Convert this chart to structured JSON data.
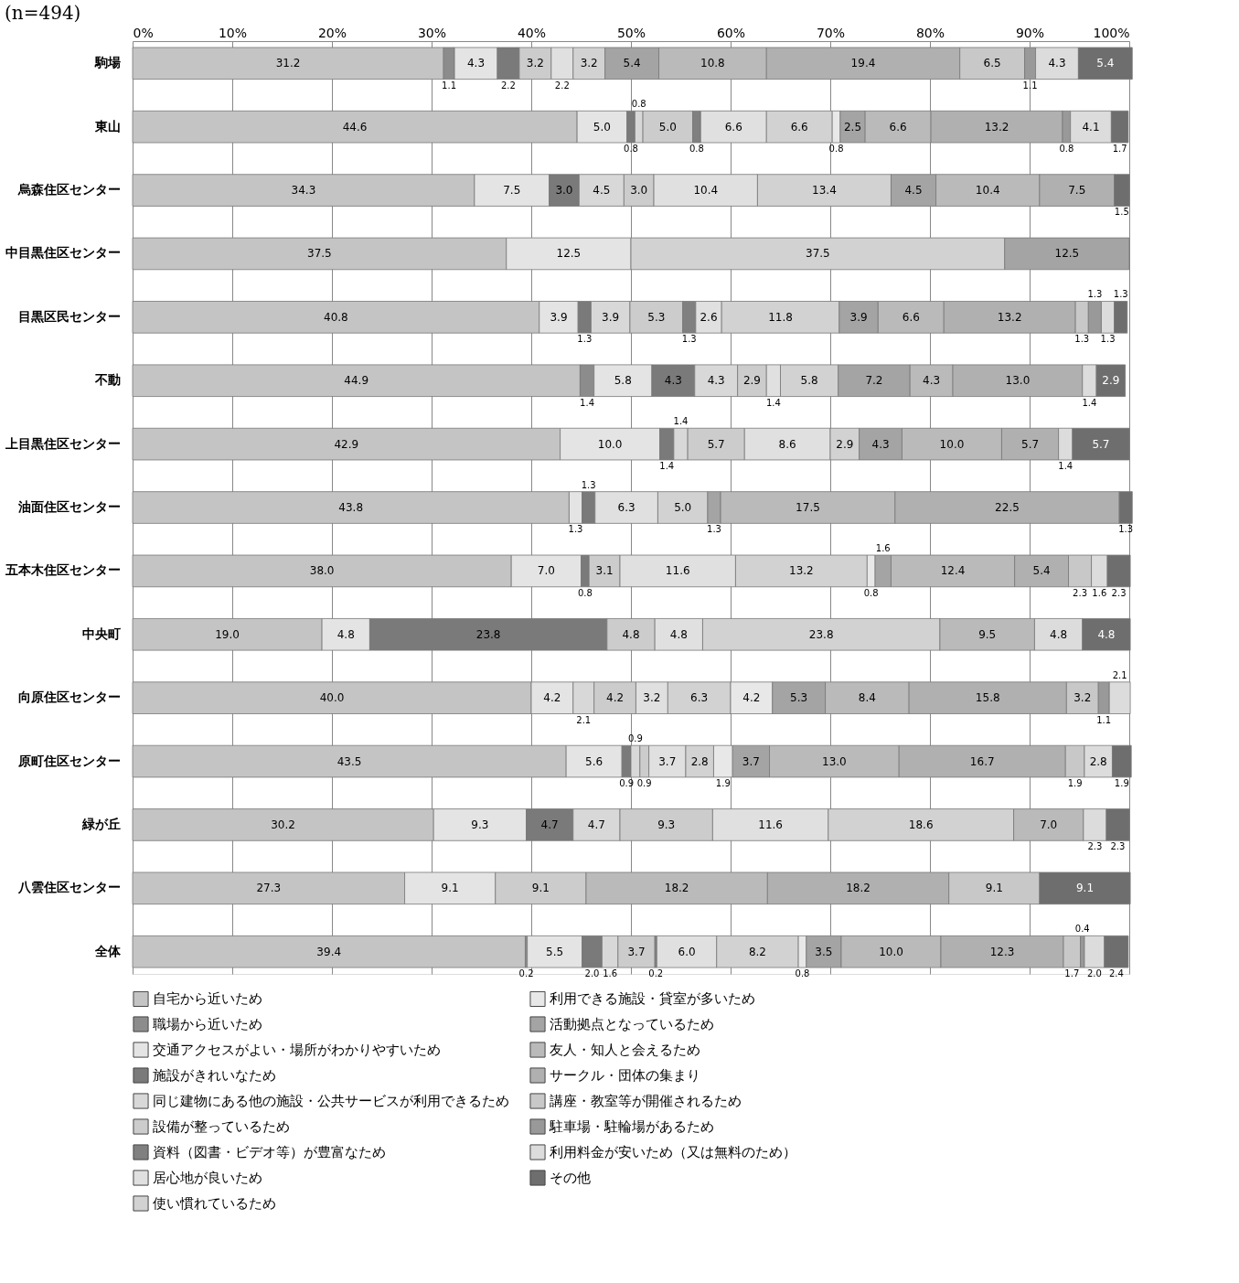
{
  "chart_data": {
    "type": "bar",
    "title": "(n=494)",
    "stacked": true,
    "orientation": "horizontal",
    "grid": "x",
    "legend": "bottom",
    "categories": [
      "駒場",
      "東山",
      "烏森住区センター",
      "中目黒住区センター",
      "目黒区民センター",
      "不動",
      "上目黒住区センター",
      "油面住区センター",
      "五本木住区センター",
      "中央町",
      "向原住区センター",
      "原町住区センター",
      "緑が丘",
      "八雲住区センター",
      "全体"
    ],
    "xlim": [
      0,
      100
    ],
    "xticks": [
      {
        "value": 0,
        "label": "0%"
      },
      {
        "value": 10,
        "label": "10%"
      },
      {
        "value": 20,
        "label": "20%"
      },
      {
        "value": 30,
        "label": "30%"
      },
      {
        "value": 40,
        "label": "40%"
      },
      {
        "value": 50,
        "label": "50%"
      },
      {
        "value": 60,
        "label": "60%"
      },
      {
        "value": 70,
        "label": "70%"
      },
      {
        "value": 80,
        "label": "80%"
      },
      {
        "value": 90,
        "label": "90%"
      },
      {
        "value": 100,
        "label": "100%"
      }
    ],
    "series": [
      {
        "name": "自宅から近いため",
        "color": "#c4c4c4",
        "values": [
          31.2,
          44.6,
          34.3,
          37.5,
          40.8,
          44.9,
          42.9,
          43.8,
          38.0,
          19.0,
          40.0,
          43.5,
          30.2,
          27.3,
          39.4
        ],
        "value_labels": [
          "31.2",
          "44.6",
          "34.3",
          "37.5",
          "40.8",
          "44.9",
          "42.9",
          "43.8",
          "38.0",
          "19.0",
          "40.0",
          "43.5",
          "30.2",
          "27.3",
          "39.4"
        ]
      },
      {
        "name": "職場から近いため",
        "color": "#8c8c8c",
        "values": [
          1.1,
          null,
          null,
          null,
          null,
          1.4,
          null,
          null,
          null,
          null,
          null,
          null,
          null,
          null,
          0.2
        ],
        "value_labels": [
          "1.1",
          null,
          null,
          null,
          null,
          "1.4",
          null,
          null,
          null,
          null,
          null,
          null,
          null,
          null,
          "0.2"
        ]
      },
      {
        "name": "交通アクセスがよい・場所がわかりやすいため",
        "color": "#e4e4e4",
        "values": [
          4.3,
          5.0,
          7.5,
          12.5,
          3.9,
          5.8,
          10.0,
          1.3,
          7.0,
          4.8,
          4.2,
          5.6,
          9.3,
          9.1,
          5.5
        ],
        "value_labels": [
          "4.3",
          "5.0",
          "7.5",
          "12.5",
          "3.9",
          "5.8",
          "10.0",
          "1.3",
          "7.0",
          "4.8",
          "4.2",
          "5.6",
          "9.3",
          "9.1",
          "5.5"
        ]
      },
      {
        "name": "施設がきれいなため",
        "color": "#7a7a7a",
        "values": [
          2.2,
          0.8,
          3.0,
          null,
          1.3,
          4.3,
          1.4,
          1.3,
          0.8,
          23.8,
          null,
          0.9,
          4.7,
          null,
          2.0
        ],
        "value_labels": [
          "2.2",
          "0.8",
          "3.0",
          null,
          "1.3",
          "4.3",
          "1.4",
          "1.3",
          "0.8",
          "23.8",
          null,
          "0.9",
          "4.7",
          null,
          "2.0"
        ]
      },
      {
        "name": "同じ建物にある他の施設・公共サービスが利用できるため",
        "color": "#d8d8d8",
        "values": [
          null,
          0.8,
          4.5,
          null,
          3.9,
          4.3,
          1.4,
          null,
          null,
          null,
          2.1,
          0.9,
          4.7,
          null,
          1.6
        ],
        "value_labels": [
          null,
          "0.8",
          "4.5",
          null,
          "3.9",
          "4.3",
          "1.4",
          null,
          null,
          null,
          "2.1",
          "0.9",
          "4.7",
          null,
          "1.6"
        ]
      },
      {
        "name": "設備が整っているため",
        "color": "#cccccc",
        "values": [
          3.2,
          5.0,
          3.0,
          null,
          5.3,
          2.9,
          5.7,
          null,
          3.1,
          4.8,
          4.2,
          0.9,
          9.3,
          9.1,
          3.7
        ],
        "value_labels": [
          "3.2",
          "5.0",
          "3.0",
          null,
          "5.3",
          "2.9",
          "5.7",
          null,
          "3.1",
          "4.8",
          "4.2",
          "0.9",
          "9.3",
          "9.1",
          "3.7"
        ]
      },
      {
        "name": "資料（図書・ビデオ等）が豊富なため",
        "color": "#808080",
        "values": [
          null,
          0.8,
          null,
          null,
          1.3,
          null,
          null,
          null,
          null,
          null,
          null,
          null,
          null,
          null,
          0.2
        ],
        "value_labels": [
          null,
          "0.8",
          null,
          null,
          "1.3",
          null,
          null,
          null,
          null,
          null,
          null,
          null,
          null,
          null,
          "0.2"
        ]
      },
      {
        "name": "居心地が良いため",
        "color": "#e0e0e0",
        "values": [
          2.2,
          6.6,
          10.4,
          null,
          2.6,
          1.4,
          8.6,
          6.3,
          11.6,
          4.8,
          3.2,
          3.7,
          11.6,
          null,
          6.0
        ],
        "value_labels": [
          "2.2",
          "6.6",
          "10.4",
          null,
          "2.6",
          "1.4",
          "8.6",
          "6.3",
          "11.6",
          "4.8",
          "3.2",
          "3.7",
          "11.6",
          null,
          "6.0"
        ]
      },
      {
        "name": "使い慣れているため",
        "color": "#d2d2d2",
        "values": [
          3.2,
          6.6,
          13.4,
          37.5,
          11.8,
          5.8,
          2.9,
          5.0,
          13.2,
          23.8,
          6.3,
          2.8,
          18.6,
          null,
          8.2
        ],
        "value_labels": [
          "3.2",
          "6.6",
          "13.4",
          "37.5",
          "11.8",
          "5.8",
          "2.9",
          "5.0",
          "13.2",
          "23.8",
          "6.3",
          "2.8",
          "18.6",
          null,
          "8.2"
        ]
      },
      {
        "name": "利用できる施設・貸室が多いため",
        "color": "#e8e8e8",
        "values": [
          null,
          0.8,
          null,
          null,
          null,
          null,
          null,
          null,
          0.8,
          null,
          4.2,
          1.9,
          null,
          null,
          0.8
        ],
        "value_labels": [
          null,
          "0.8",
          null,
          null,
          null,
          null,
          null,
          null,
          "0.8",
          null,
          "4.2",
          "1.9",
          null,
          null,
          "0.8"
        ]
      },
      {
        "name": "活動拠点となっているため",
        "color": "#a4a4a4",
        "values": [
          5.4,
          2.5,
          4.5,
          12.5,
          3.9,
          7.2,
          4.3,
          1.3,
          1.6,
          null,
          5.3,
          3.7,
          null,
          null,
          3.5
        ],
        "value_labels": [
          "5.4",
          "2.5",
          "4.5",
          "12.5",
          "3.9",
          "7.2",
          "4.3",
          "1.3",
          "1.6",
          null,
          "5.3",
          "3.7",
          null,
          null,
          "3.5"
        ]
      },
      {
        "name": "友人・知人と会えるため",
        "color": "#bababa",
        "values": [
          10.8,
          6.6,
          10.4,
          null,
          6.6,
          4.3,
          10.0,
          17.5,
          12.4,
          9.5,
          8.4,
          13.0,
          7.0,
          18.2,
          10.0
        ],
        "value_labels": [
          "10.8",
          "6.6",
          "10.4",
          null,
          "6.6",
          "4.3",
          "10.0",
          "17.5",
          "12.4",
          "9.5",
          "8.4",
          "13.0",
          "7.0",
          "18.2",
          "10.0"
        ]
      },
      {
        "name": "サークル・団体の集まり",
        "color": "#b0b0b0",
        "values": [
          19.4,
          13.2,
          7.5,
          null,
          13.2,
          13.0,
          5.7,
          22.5,
          5.4,
          null,
          15.8,
          16.7,
          null,
          18.2,
          12.3
        ],
        "value_labels": [
          "19.4",
          "13.2",
          "7.5",
          null,
          "13.2",
          "13.0",
          "5.7",
          "22.5",
          "5.4",
          null,
          "15.8",
          "16.7",
          null,
          "18.2",
          "12.3"
        ]
      },
      {
        "name": "講座・教室等が開催されるため",
        "color": "#c8c8c8",
        "values": [
          6.5,
          null,
          null,
          null,
          1.3,
          null,
          null,
          null,
          2.3,
          null,
          3.2,
          1.9,
          null,
          9.1,
          1.7
        ],
        "value_labels": [
          "6.5",
          null,
          null,
          null,
          "1.3",
          null,
          null,
          null,
          "2.3",
          null,
          "3.2",
          "1.9",
          null,
          "9.1",
          "1.7"
        ]
      },
      {
        "name": "駐車場・駐輪場があるため",
        "color": "#999999",
        "values": [
          1.1,
          0.8,
          null,
          null,
          1.3,
          null,
          null,
          null,
          null,
          null,
          1.1,
          null,
          null,
          null,
          0.4
        ],
        "value_labels": [
          "1.1",
          "0.8",
          null,
          null,
          "1.3",
          null,
          null,
          null,
          null,
          null,
          "1.1",
          null,
          null,
          null,
          "0.4"
        ]
      },
      {
        "name": "利用料金が安いため（又は無料のため）",
        "color": "#dcdcdc",
        "values": [
          4.3,
          4.1,
          null,
          null,
          1.3,
          1.4,
          1.4,
          null,
          1.6,
          4.8,
          2.1,
          2.8,
          2.3,
          null,
          2.0
        ],
        "value_labels": [
          "4.3",
          "4.1",
          null,
          null,
          "1.3",
          "1.4",
          "1.4",
          null,
          "1.6",
          "4.8",
          "2.1",
          "2.8",
          "2.3",
          null,
          "2.0"
        ]
      },
      {
        "name": "その他",
        "color": "#6e6e6e",
        "values": [
          5.4,
          1.7,
          1.5,
          null,
          1.3,
          2.9,
          5.7,
          1.3,
          2.3,
          4.8,
          null,
          1.9,
          2.3,
          9.1,
          2.4
        ],
        "value_labels": [
          "5.4",
          "1.7",
          "1.5",
          null,
          "1.3",
          "2.9",
          "5.7",
          "1.3",
          "2.3",
          "4.8",
          null,
          "1.9",
          "2.3",
          "9.1",
          "2.4"
        ]
      }
    ]
  }
}
